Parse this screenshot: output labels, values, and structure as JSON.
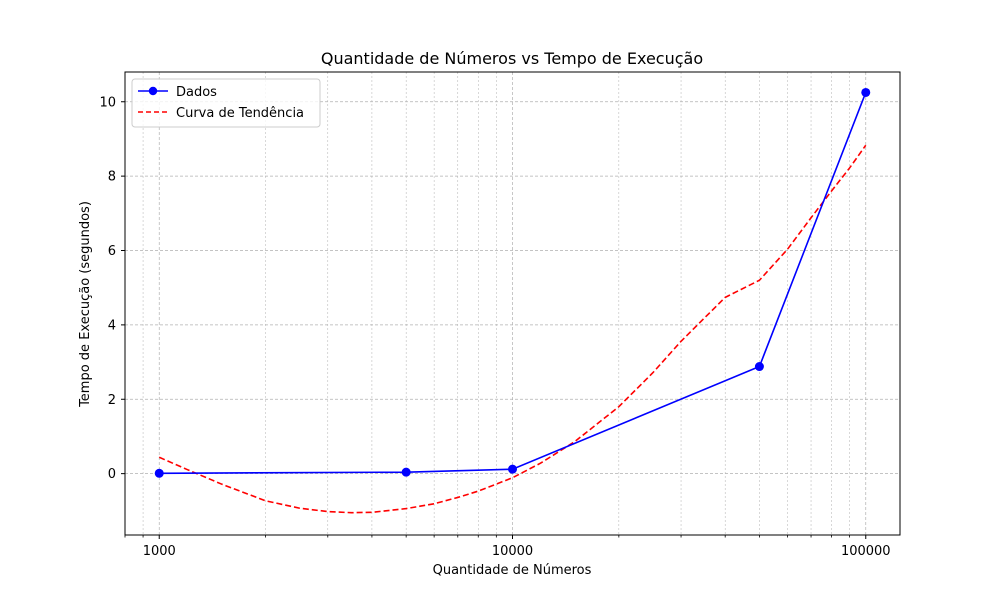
{
  "chart_data": {
    "type": "line",
    "title": "Quantidade de Números vs Tempo de Execução",
    "xlabel": "Quantidade de Números",
    "ylabel": "Tempo de Execução (segundos)",
    "x_scale": "log",
    "xlim": [
      800,
      125000
    ],
    "ylim": [
      -1.65,
      10.8
    ],
    "x_ticks": [
      1000,
      10000,
      100000
    ],
    "x_tick_labels": [
      "1000",
      "10000",
      "100000"
    ],
    "y_ticks": [
      0,
      2,
      4,
      6,
      8,
      10
    ],
    "y_tick_labels": [
      "0",
      "2",
      "4",
      "6",
      "8",
      "10"
    ],
    "grid": true,
    "legend_position": "top-left",
    "series": [
      {
        "name": "Dados",
        "style": "solid-line-circle-markers",
        "color": "#0000ff",
        "x": [
          1000,
          5000,
          10000,
          50000,
          100000
        ],
        "y": [
          0.01,
          0.04,
          0.12,
          2.88,
          10.25
        ]
      },
      {
        "name": "Curva de Tendência",
        "style": "dashed-line",
        "color": "#ff0000",
        "x": [
          1000,
          1200,
          1500,
          2000,
          2500,
          3000,
          3500,
          4000,
          5000,
          6000,
          7000,
          8000,
          10000,
          12000,
          15000,
          20000,
          25000,
          30000,
          40000,
          50000,
          60000,
          70000,
          80000,
          90000,
          100000
        ],
        "y": [
          0.44,
          0.11,
          -0.28,
          -0.73,
          -0.93,
          -1.02,
          -1.05,
          -1.04,
          -0.94,
          -0.81,
          -0.64,
          -0.47,
          -0.11,
          0.28,
          0.86,
          1.8,
          2.72,
          3.56,
          4.74,
          5.2,
          6.03,
          6.88,
          7.6,
          8.22,
          8.83
        ]
      }
    ]
  }
}
